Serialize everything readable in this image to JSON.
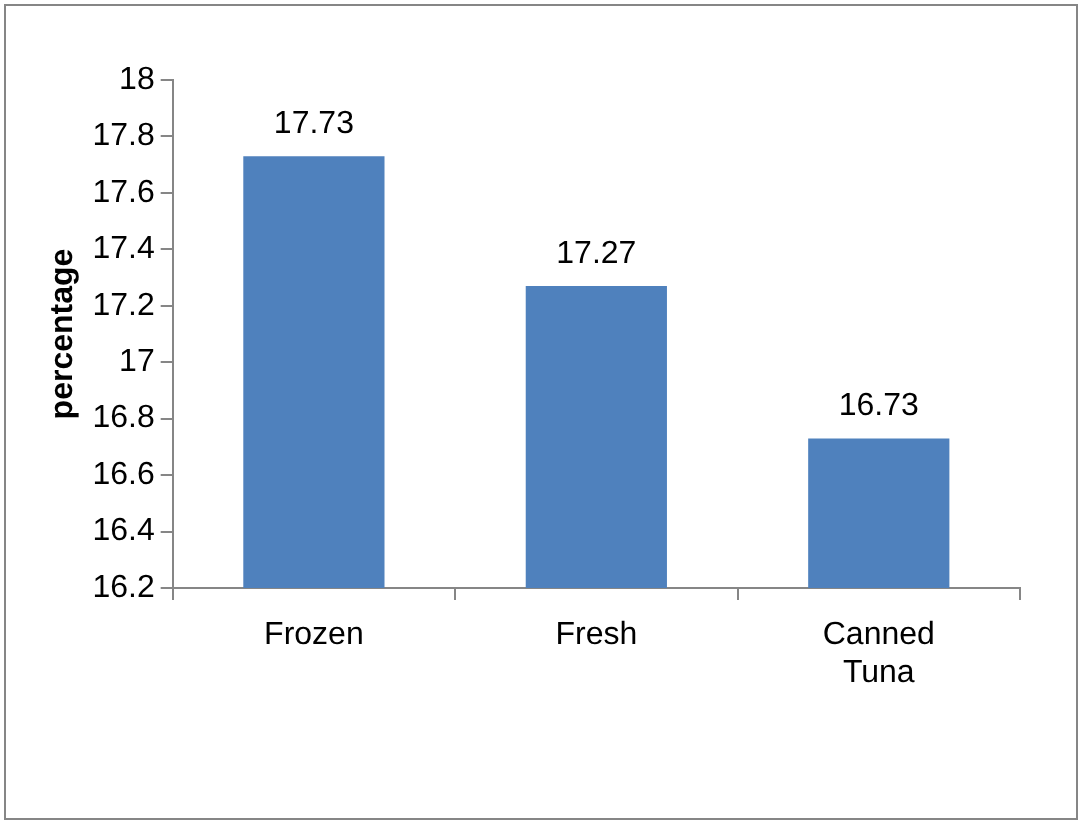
{
  "chart_data": {
    "type": "bar",
    "ylabel": "percentage",
    "categories": [
      "Frozen",
      "Fresh",
      "Canned Tuna"
    ],
    "values": [
      17.73,
      17.27,
      16.73
    ],
    "color": "#4f81bd",
    "ylim": [
      16.2,
      18
    ],
    "yticks": [
      16.2,
      16.4,
      16.6,
      16.8,
      17,
      17.2,
      17.4,
      17.6,
      17.8,
      18
    ],
    "grid": false,
    "legend": false,
    "data_labels": true
  }
}
